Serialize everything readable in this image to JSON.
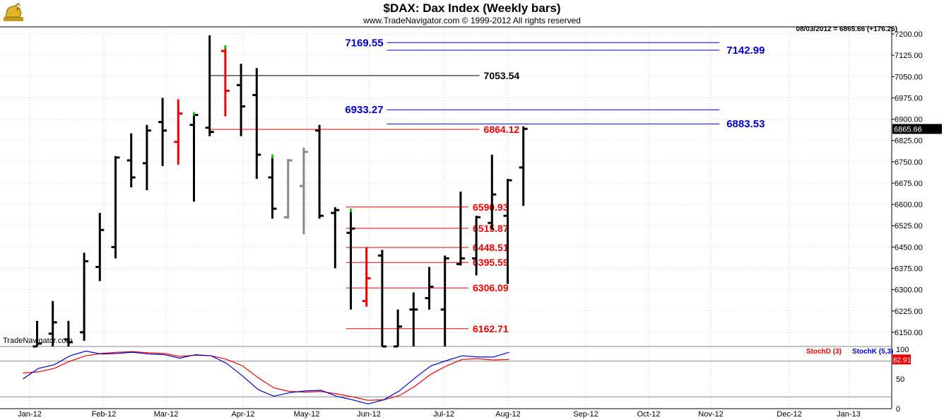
{
  "header": {
    "title": "$DAX:  Dax Index  (Weekly bars)",
    "subtitle": "www.TradeNavigator.com © 1999-2012 All rights reserved",
    "last_quote": "08/03/2012 = 6865.66 (+176.26)",
    "watermark": "TradeNavigator.com",
    "logo_icon": "trade-navigator-bull-icon"
  },
  "colors": {
    "up_close": "#00cc00",
    "down": "#ee0000",
    "neutral_bar": "#888888",
    "bar": "#000000",
    "level_blue": "#0000cc",
    "level_red": "#ee0000",
    "level_black": "#000000",
    "stoch_d": "#ee0000",
    "stoch_k": "#0000cc"
  },
  "chart_data": {
    "type": "ohlc",
    "price_axis": {
      "ylim": [
        6100,
        7225
      ],
      "ticks": [
        "6150.00",
        "6225.00",
        "6300.00",
        "6375.00",
        "6450.00",
        "6525.00",
        "6600.00",
        "6675.00",
        "6750.00",
        "6825.00",
        "6900.00",
        "6975.00",
        "7050.00",
        "7125.00",
        "7200.00"
      ],
      "current_price_label": "6865.66"
    },
    "x_axis": {
      "months": [
        "Jan-12",
        "Feb-12",
        "Mar-12",
        "Apr-12",
        "May-12",
        "Jun-12",
        "Jul-12",
        "Aug-12",
        "Sep-12",
        "Oct-12",
        "Nov-12",
        "Dec-12",
        "Jan-13"
      ]
    },
    "bars": [
      {
        "w": 0,
        "o": 6100,
        "h": 6190,
        "l": 6100,
        "c": 6110
      },
      {
        "w": 1,
        "o": 6145,
        "h": 6260,
        "l": 6100,
        "c": 6185
      },
      {
        "w": 2,
        "o": 6125,
        "h": 6190,
        "l": 6100,
        "c": 6115
      },
      {
        "w": 3,
        "o": 6150,
        "h": 6430,
        "l": 6120,
        "c": 6400
      },
      {
        "w": 4,
        "o": 6380,
        "h": 6570,
        "l": 6330,
        "c": 6510
      },
      {
        "w": 5,
        "o": 6450,
        "h": 6770,
        "l": 6410,
        "c": 6765
      },
      {
        "w": 6,
        "o": 6755,
        "h": 6850,
        "l": 6660,
        "c": 6695
      },
      {
        "w": 7,
        "o": 6745,
        "h": 6880,
        "l": 6650,
        "c": 6860
      },
      {
        "w": 8,
        "o": 6890,
        "h": 6975,
        "l": 6735,
        "c": 6860
      },
      {
        "w": 9,
        "o": 6820,
        "h": 6970,
        "l": 6740,
        "c": 6920,
        "color": "down"
      },
      {
        "w": 10,
        "o": 6880,
        "h": 6925,
        "l": 6610,
        "c": 6915,
        "hl": "up_close"
      },
      {
        "w": 11,
        "o": 6870,
        "h": 7195,
        "l": 6840,
        "c": 6855
      },
      {
        "w": 12,
        "o": 7140,
        "h": 7160,
        "l": 6910,
        "c": 7000,
        "color": "down",
        "hl": "up_close"
      },
      {
        "w": 13,
        "o": 7020,
        "h": 7095,
        "l": 6840,
        "c": 6945
      },
      {
        "w": 14,
        "o": 6985,
        "h": 7080,
        "l": 6690,
        "c": 6775
      },
      {
        "w": 15,
        "o": 6695,
        "h": 6775,
        "l": 6550,
        "c": 6585,
        "hl": "up_close"
      },
      {
        "w": 16,
        "o": 6555,
        "h": 6760,
        "l": 6550,
        "c": 6755,
        "color": "neutral"
      },
      {
        "w": 17,
        "o": 6665,
        "h": 6800,
        "l": 6495,
        "c": 6785,
        "color": "neutral"
      },
      {
        "w": 18,
        "o": 6860,
        "h": 6880,
        "l": 6550,
        "c": 6560
      },
      {
        "w": 19,
        "o": 6570,
        "h": 6590,
        "l": 6375,
        "c": 6580
      },
      {
        "w": 20,
        "o": 6500,
        "h": 6585,
        "l": 6230,
        "c": 6515,
        "hl": "up_close"
      },
      {
        "w": 21,
        "o": 6260,
        "h": 6450,
        "l": 6240,
        "c": 6340,
        "color": "down"
      },
      {
        "w": 22,
        "o": 6420,
        "h": 6440,
        "l": 6100,
        "c": 6100
      },
      {
        "w": 23,
        "o": 6100,
        "h": 6230,
        "l": 6100,
        "c": 6170
      },
      {
        "w": 24,
        "o": 6230,
        "h": 6290,
        "l": 6100,
        "c": 6230
      },
      {
        "w": 25,
        "o": 6270,
        "h": 6380,
        "l": 6230,
        "c": 6310
      },
      {
        "w": 26,
        "o": 6230,
        "h": 6420,
        "l": 6100,
        "c": 6410
      },
      {
        "w": 27,
        "o": 6390,
        "h": 6645,
        "l": 6385,
        "c": 6410
      },
      {
        "w": 28,
        "o": 6410,
        "h": 6560,
        "l": 6350,
        "c": 6555
      },
      {
        "w": 29,
        "o": 6535,
        "h": 6775,
        "l": 6510,
        "c": 6635
      },
      {
        "w": 30,
        "o": 6560,
        "h": 6690,
        "l": 6320,
        "c": 6685
      },
      {
        "w": 31,
        "o": 6730,
        "h": 6875,
        "l": 6595,
        "c": 6866
      }
    ],
    "levels": [
      {
        "value": 7169.55,
        "label": "7169.55",
        "color": "level_blue",
        "label_side": "left",
        "from_week": 22.3,
        "to_week": 43.5
      },
      {
        "value": 7142.99,
        "label": "7142.99",
        "color": "level_blue",
        "label_side": "right",
        "from_week": 22.3,
        "to_week": 43.5
      },
      {
        "value": 7053.54,
        "label": "7053.54",
        "color": "level_black",
        "label_side": "right",
        "from_week": 11,
        "to_week": 28.2
      },
      {
        "value": 6933.27,
        "label": "6933.27",
        "color": "level_blue",
        "label_side": "left",
        "from_week": 22.3,
        "to_week": 43.5
      },
      {
        "value": 6883.53,
        "label": "6883.53",
        "color": "level_blue",
        "label_side": "right",
        "from_week": 22.3,
        "to_week": 43.5
      },
      {
        "value": 6864.12,
        "label": "6864.12",
        "color": "level_red",
        "label_side": "right",
        "from_week": 11,
        "to_week": 28.2
      },
      {
        "value": 6590.93,
        "label": "6590.93",
        "color": "level_red",
        "label_side": "right",
        "from_week": 19.7,
        "to_week": 27.5
      },
      {
        "value": 6515.87,
        "label": "6515.87",
        "color": "level_red",
        "label_side": "right",
        "from_week": 19.7,
        "to_week": 27.5
      },
      {
        "value": 6448.51,
        "label": "6448.51",
        "color": "level_red",
        "label_side": "right",
        "from_week": 19.7,
        "to_week": 27.5
      },
      {
        "value": 6395.59,
        "label": "6395.59",
        "color": "level_red",
        "label_side": "right",
        "from_week": 19.7,
        "to_week": 27.5
      },
      {
        "value": 6306.09,
        "label": "6306.09",
        "color": "level_red",
        "label_side": "right",
        "from_week": 19.7,
        "to_week": 27.5
      },
      {
        "value": 6162.71,
        "label": "6162.71",
        "color": "level_red",
        "label_side": "right",
        "from_week": 19.7,
        "to_week": 27.5
      }
    ],
    "indicator": {
      "ylim": [
        0,
        100
      ],
      "ticks": [
        "0",
        "50",
        "100"
      ],
      "ref_lines": [
        80,
        20
      ],
      "current_label": "82.91",
      "series": [
        {
          "name": "StochD (3)",
          "legend": "StochD (3)",
          "color": "stoch_d",
          "values": [
            60,
            62,
            68,
            80,
            89,
            93,
            95,
            96,
            94,
            93,
            88,
            90,
            89,
            83,
            72,
            52,
            35,
            29,
            28,
            29,
            25,
            20,
            14,
            15,
            22,
            38,
            58,
            72,
            83,
            84,
            82,
            83
          ]
        },
        {
          "name": "StochK (5,3)",
          "legend": "StochK (5,3)",
          "color": "stoch_k",
          "values": [
            50,
            68,
            74,
            89,
            97,
            92,
            93,
            95,
            92,
            91,
            85,
            91,
            89,
            76,
            55,
            32,
            21,
            27,
            30,
            31,
            21,
            15,
            8,
            15,
            30,
            52,
            72,
            81,
            89,
            87,
            87,
            95
          ]
        }
      ]
    }
  }
}
